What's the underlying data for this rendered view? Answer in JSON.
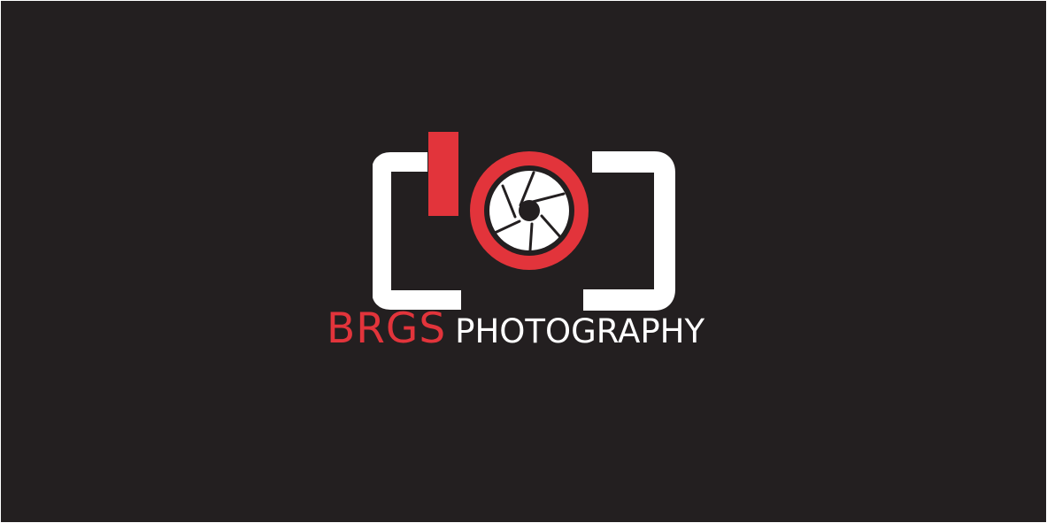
{
  "logo": {
    "icon": "camera-aperture-icon",
    "brand_name": "BRGS",
    "brand_suffix": "PHOTOGRAPHY"
  },
  "colors": {
    "background": "#231f20",
    "accent": "#e2343b",
    "foreground": "#ffffff"
  }
}
